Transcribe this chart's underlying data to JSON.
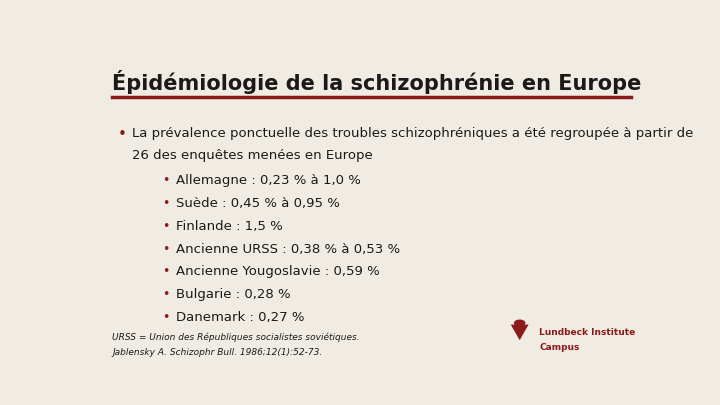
{
  "title": "Épidémiologie de la schizophrénie en Europe",
  "title_color": "#1a1a1a",
  "title_fontsize": 15,
  "line_color": "#8B1A1A",
  "bg_color": "#f0ece4",
  "sub_bullets": [
    "Allemagne : 0,23 % à 1,0 %",
    "Suède : 0,45 % à 0,95 %",
    "Finlande : 1,5 %",
    "Ancienne URSS : 0,38 % à 0,53 %",
    "Ancienne Yougoslavie : 0,59 %",
    "Bulgarie : 0,28 %",
    "Danemark : 0,27 %"
  ],
  "bullet_color": "#8B1A1A",
  "text_color": "#1a1a1a",
  "footnote_line1": "URSS = Union des Républiques socialistes soviétiques.",
  "footnote_line2": "Jablensky A. Schizophr Bull. 1986;12(1):52-73.",
  "footnote_fontsize": 6.5,
  "logo_text1": "Lundbeck Institute",
  "logo_text2": "Campus",
  "logo_color": "#8B1A1A"
}
